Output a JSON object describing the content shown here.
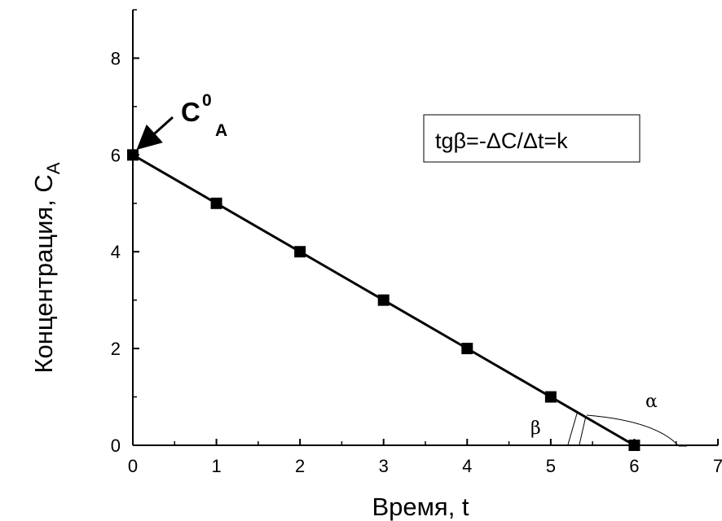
{
  "chart_data": {
    "type": "line",
    "x": [
      0,
      1,
      2,
      3,
      4,
      5,
      6
    ],
    "series": [
      {
        "values": [
          6,
          5,
          4,
          3,
          2,
          1,
          0
        ]
      }
    ],
    "xlabel": "Время, t",
    "ylabel_main": "Концентрация, C",
    "ylabel_sub": "A",
    "xlim": [
      0,
      7
    ],
    "ylim": [
      0,
      9
    ],
    "x_ticks": [
      "0",
      "1",
      "2",
      "3",
      "4",
      "5",
      "6",
      "7"
    ],
    "y_ticks": [
      "0",
      "2",
      "4",
      "6",
      "8"
    ],
    "grid": false,
    "marker": "square",
    "annotations": {
      "initial_label_main": "C",
      "initial_label_sup": "0",
      "initial_label_sub": "A",
      "formula": "tgβ=-ΔC/Δt=k",
      "alpha": "α",
      "beta": "β"
    }
  }
}
